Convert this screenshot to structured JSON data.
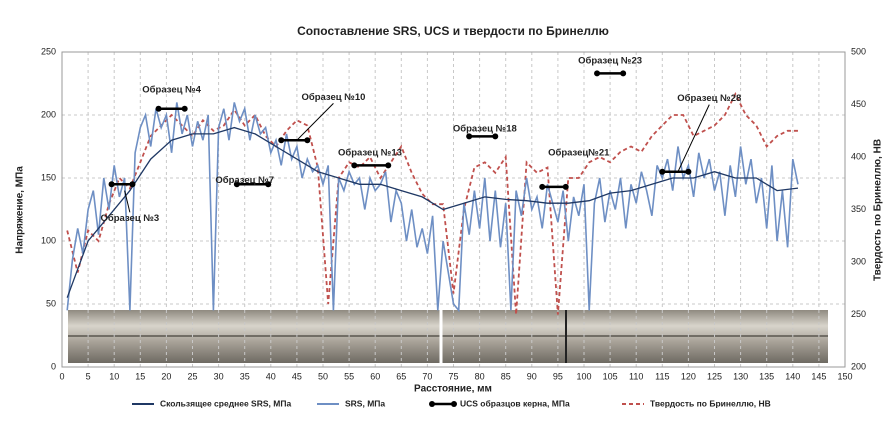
{
  "chart_data": {
    "type": "line",
    "title": "Сопоставление SRS, UCS и твердости по Бринеллю",
    "xlabel": "Расстояние, мм",
    "ylabel": "Напряжение, МПа",
    "y2label": "Твердость по Бринеллю, НВ",
    "xlim": [
      0,
      150
    ],
    "xticks": [
      0,
      5,
      10,
      15,
      20,
      25,
      30,
      35,
      40,
      45,
      50,
      55,
      60,
      65,
      70,
      75,
      80,
      85,
      90,
      95,
      100,
      105,
      110,
      115,
      120,
      125,
      130,
      135,
      140,
      145,
      150
    ],
    "ylim": [
      0,
      250
    ],
    "yticks": [
      0,
      50,
      100,
      150,
      200,
      250
    ],
    "y2lim": [
      200,
      500
    ],
    "y2ticks": [
      200,
      250,
      300,
      350,
      400,
      450,
      500
    ],
    "grid": true,
    "series": [
      {
        "name": "Скользящее среднее SRS, МПа",
        "color": "#1f3864",
        "style": "solid",
        "x": [
          1,
          5,
          9,
          13,
          17,
          21,
          25,
          29,
          33,
          37,
          41,
          45,
          49,
          53,
          57,
          61,
          65,
          69,
          73,
          77,
          81,
          85,
          89,
          93,
          97,
          101,
          105,
          109,
          113,
          117,
          121,
          125,
          129,
          133,
          137,
          141
        ],
        "values": [
          55,
          100,
          120,
          140,
          165,
          180,
          185,
          185,
          190,
          185,
          175,
          165,
          155,
          150,
          145,
          145,
          140,
          135,
          125,
          130,
          135,
          133,
          132,
          130,
          130,
          132,
          138,
          140,
          145,
          150,
          150,
          155,
          150,
          150,
          140,
          142
        ]
      },
      {
        "name": "SRS, МПа",
        "color": "#6e8fc4",
        "style": "solid",
        "x": [
          1,
          2,
          3,
          4,
          5,
          6,
          7,
          8,
          9,
          10,
          11,
          12,
          13,
          14,
          15,
          16,
          17,
          18,
          19,
          20,
          21,
          22,
          23,
          24,
          25,
          26,
          27,
          28,
          29,
          30,
          31,
          32,
          33,
          34,
          35,
          36,
          37,
          38,
          39,
          40,
          41,
          42,
          43,
          44,
          45,
          46,
          47,
          48,
          49,
          50,
          51,
          52,
          53,
          54,
          55,
          56,
          57,
          58,
          59,
          60,
          61,
          62,
          63,
          64,
          65,
          66,
          67,
          68,
          69,
          70,
          71,
          72,
          73,
          74,
          75,
          76,
          77,
          78,
          79,
          80,
          81,
          82,
          83,
          84,
          85,
          86,
          87,
          88,
          89,
          90,
          91,
          92,
          93,
          94,
          95,
          96,
          97,
          98,
          99,
          100,
          101,
          102,
          103,
          104,
          105,
          106,
          107,
          108,
          109,
          110,
          111,
          112,
          113,
          114,
          115,
          116,
          117,
          118,
          119,
          120,
          121,
          122,
          123,
          124,
          125,
          126,
          127,
          128,
          129,
          130,
          131,
          132,
          133,
          134,
          135,
          136,
          137,
          138,
          139,
          140,
          141
        ],
        "values": [
          45,
          85,
          110,
          90,
          125,
          140,
          105,
          150,
          125,
          160,
          135,
          150,
          45,
          170,
          190,
          200,
          175,
          205,
          190,
          200,
          170,
          210,
          185,
          200,
          175,
          195,
          180,
          200,
          45,
          190,
          205,
          180,
          210,
          195,
          205,
          180,
          200,
          185,
          190,
          170,
          180,
          160,
          185,
          165,
          175,
          150,
          165,
          155,
          160,
          145,
          160,
          45,
          150,
          140,
          155,
          145,
          150,
          125,
          150,
          140,
          145,
          155,
          115,
          140,
          130,
          100,
          125,
          95,
          110,
          90,
          120,
          45,
          100,
          75,
          50,
          45,
          130,
          105,
          140,
          110,
          150,
          100,
          140,
          95,
          130,
          45,
          140,
          120,
          150,
          125,
          135,
          110,
          145,
          130,
          115,
          140,
          100,
          135,
          120,
          145,
          45,
          130,
          150,
          115,
          140,
          125,
          150,
          110,
          145,
          130,
          155,
          140,
          120,
          160,
          150,
          165,
          140,
          175,
          150,
          160,
          135,
          170,
          150,
          165,
          140,
          155,
          120,
          160,
          135,
          175,
          145,
          165,
          130,
          150,
          110,
          160,
          100,
          140,
          95,
          165,
          145
        ]
      },
      {
        "name": "UCS образцов керна, МПа",
        "color": "#000000",
        "style": "interval",
        "x_start": [
          9.5,
          18.5,
          33.5,
          42,
          56,
          78,
          92,
          102.5,
          115
        ],
        "x_end": [
          13.5,
          23.5,
          39.5,
          47,
          62.5,
          83,
          96.5,
          107.5,
          120
        ],
        "values": [
          145,
          205,
          145,
          180,
          160,
          183,
          143,
          233,
          155
        ]
      },
      {
        "name": "Твердость по Бринеллю, НВ",
        "color": "#c0504d",
        "style": "dashed",
        "axis": "y2",
        "x": [
          1,
          3,
          5,
          7,
          9,
          11,
          13,
          15,
          17,
          19,
          21,
          23,
          25,
          27,
          29,
          31,
          33,
          35,
          37,
          39,
          41,
          43,
          45,
          47,
          49,
          51,
          53,
          55,
          57,
          59,
          61,
          63,
          65,
          67,
          69,
          71,
          73,
          75,
          77,
          79,
          81,
          83,
          85,
          87,
          89,
          91,
          93,
          95,
          97,
          99,
          101,
          103,
          105,
          107,
          109,
          111,
          113,
          115,
          117,
          119,
          121,
          123,
          125,
          127,
          129,
          131,
          133,
          135,
          137,
          139,
          141
        ],
        "values": [
          330,
          290,
          330,
          320,
          355,
          380,
          370,
          395,
          420,
          430,
          440,
          430,
          420,
          435,
          425,
          430,
          445,
          430,
          440,
          420,
          410,
          425,
          435,
          430,
          390,
          260,
          380,
          395,
          390,
          400,
          380,
          395,
          410,
          385,
          365,
          355,
          355,
          270,
          350,
          390,
          395,
          385,
          400,
          250,
          395,
          385,
          390,
          250,
          380,
          380,
          395,
          400,
          395,
          405,
          410,
          405,
          420,
          430,
          440,
          440,
          420,
          425,
          430,
          440,
          460,
          440,
          430,
          410,
          420,
          425,
          425
        ]
      }
    ],
    "annotations": [
      "Образец №3",
      "Образец №4",
      "Образец №7",
      "Образец №10",
      "Образец №13",
      "Образец №18",
      "Образец№21",
      "Образец №23",
      "Образец №28"
    ]
  }
}
